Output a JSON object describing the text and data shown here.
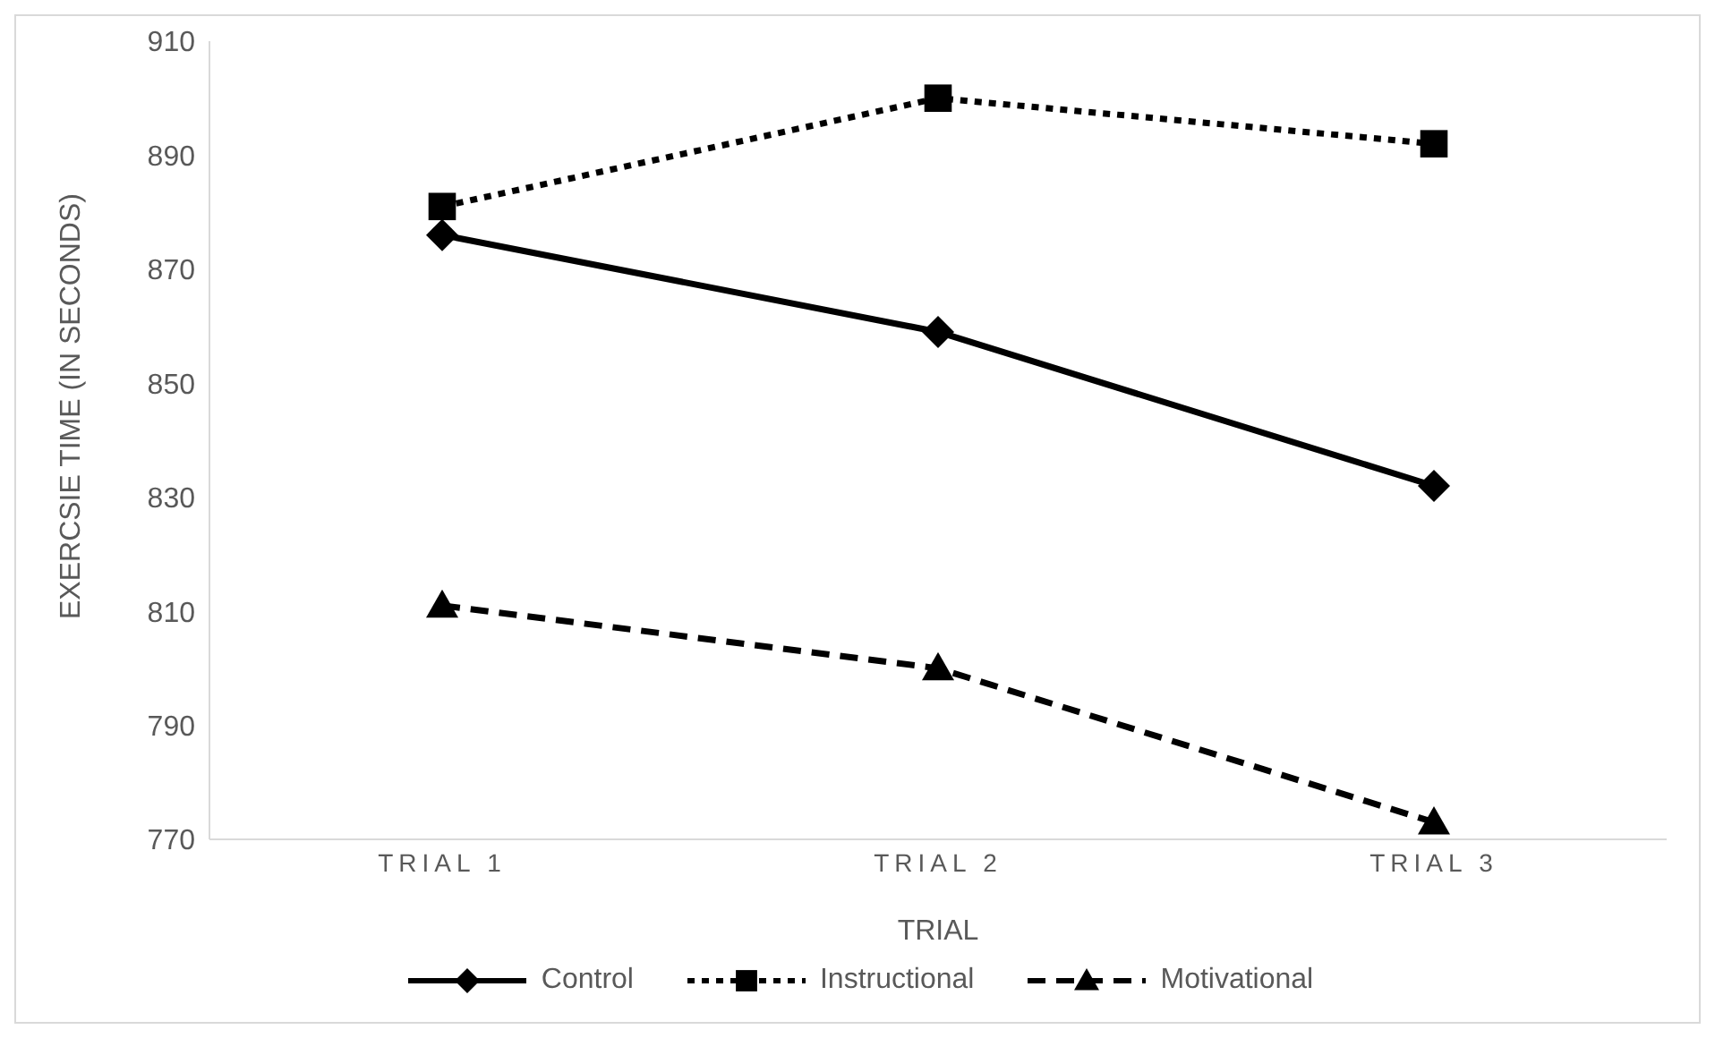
{
  "chart_data": {
    "type": "line",
    "xlabel": "TRIAL",
    "ylabel": "EXERCSIE TIME (IN SECONDS)",
    "categories": [
      "TRIAL 1",
      "TRIAL 2",
      "TRIAL 3"
    ],
    "series": [
      {
        "name": "Control",
        "color": "#000000",
        "values": [
          876,
          859,
          832
        ],
        "marker": "diamond",
        "line_style": "solid"
      },
      {
        "name": "Instructional",
        "color": "#000000",
        "values": [
          881,
          900,
          892
        ],
        "marker": "square",
        "line_style": "dotted"
      },
      {
        "name": "Motivational",
        "color": "#000000",
        "values": [
          811,
          800,
          773
        ],
        "marker": "triangle",
        "line_style": "dashed"
      }
    ],
    "ylim": [
      770,
      910
    ],
    "yticks": [
      770,
      790,
      810,
      830,
      850,
      870,
      890,
      910
    ],
    "grid": false,
    "legend": "bottom"
  }
}
